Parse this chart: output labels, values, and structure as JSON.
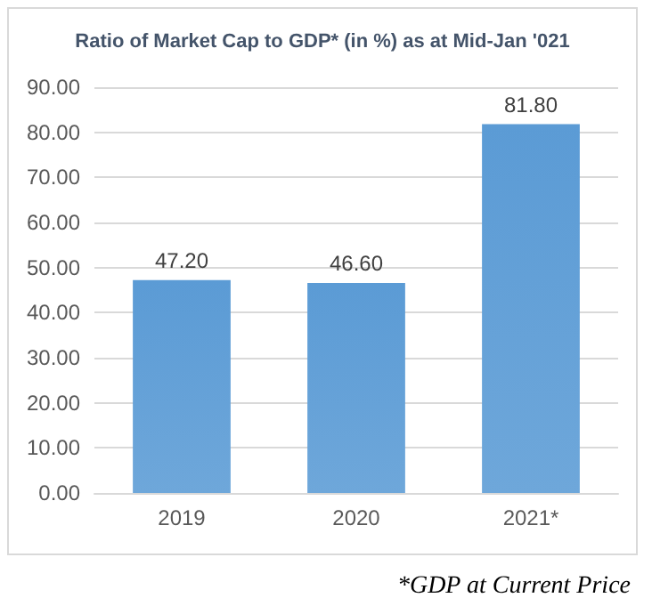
{
  "chart_data": {
    "type": "bar",
    "title": "Ratio of Market Cap to GDP* (in %) as at Mid-Jan '021",
    "categories": [
      "2019",
      "2020",
      "2021*"
    ],
    "values": [
      47.2,
      46.6,
      81.8
    ],
    "value_labels": [
      "47.20",
      "46.60",
      "81.80"
    ],
    "color": "#5b9bd5",
    "ylim": [
      0,
      90
    ],
    "yticks": [
      {
        "value": 0,
        "label": "0.00"
      },
      {
        "value": 10,
        "label": "10.00"
      },
      {
        "value": 20,
        "label": "20.00"
      },
      {
        "value": 30,
        "label": "30.00"
      },
      {
        "value": 40,
        "label": "40.00"
      },
      {
        "value": 50,
        "label": "50.00"
      },
      {
        "value": 60,
        "label": "60.00"
      },
      {
        "value": 70,
        "label": "70.00"
      },
      {
        "value": 80,
        "label": "80.00"
      },
      {
        "value": 90,
        "label": "90.00"
      }
    ],
    "grid": "y",
    "annotations": [
      "*GDP at Current Price"
    ]
  }
}
